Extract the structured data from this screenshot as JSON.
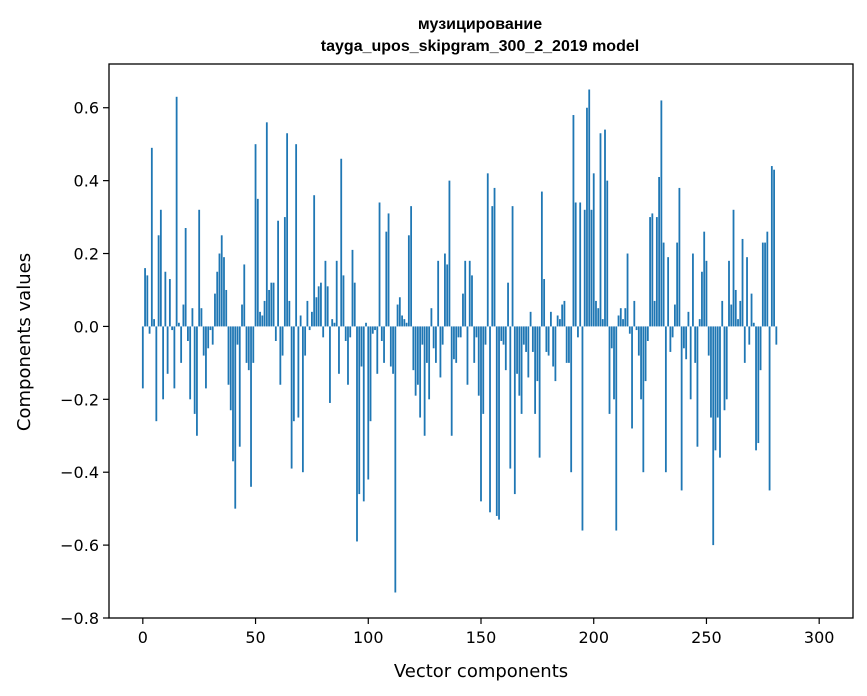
{
  "chart_data": {
    "type": "bar",
    "title": "музицирование",
    "subtitle": "tayga_upos_skipgram_300_2_2019 model",
    "xlabel": "Vector components",
    "ylabel": "Components values",
    "xlim": [
      -15,
      315
    ],
    "ylim": [
      -0.8,
      0.72
    ],
    "xticks": [
      0,
      50,
      100,
      150,
      200,
      250,
      300
    ],
    "yticks": [
      -0.8,
      -0.6,
      -0.4,
      -0.2,
      0.0,
      0.2,
      0.4,
      0.6
    ],
    "ytick_labels": [
      "−0.8",
      "−0.6",
      "−0.4",
      "−0.2",
      "0.0",
      "0.2",
      "0.4",
      "0.6"
    ],
    "xtick_labels": [
      "0",
      "50",
      "100",
      "150",
      "200",
      "250",
      "300"
    ],
    "bar_color": "#1f77b4",
    "values": [
      -0.17,
      0.16,
      0.14,
      -0.02,
      0.49,
      0.02,
      -0.26,
      0.25,
      0.32,
      -0.2,
      0.15,
      -0.13,
      0.13,
      -0.01,
      -0.17,
      0.63,
      0.01,
      -0.1,
      0.06,
      0.27,
      -0.04,
      -0.2,
      0.05,
      -0.24,
      -0.3,
      0.32,
      0.05,
      -0.08,
      -0.17,
      -0.06,
      -0.01,
      -0.05,
      0.09,
      0.15,
      0.2,
      0.25,
      0.19,
      0.1,
      -0.16,
      -0.23,
      -0.37,
      -0.5,
      -0.05,
      -0.33,
      0.06,
      0.17,
      -0.1,
      -0.12,
      -0.44,
      -0.1,
      0.5,
      0.35,
      0.04,
      0.03,
      0.07,
      0.56,
      0.1,
      0.12,
      0.12,
      -0.04,
      0.29,
      -0.16,
      -0.08,
      0.3,
      0.53,
      0.07,
      -0.39,
      -0.26,
      0.5,
      -0.25,
      0.03,
      -0.4,
      -0.08,
      0.07,
      -0.01,
      0.04,
      0.36,
      0.08,
      0.11,
      0.12,
      -0.03,
      0.18,
      0.11,
      -0.21,
      0.02,
      0.01,
      0.18,
      -0.13,
      0.46,
      0.14,
      -0.04,
      -0.16,
      -0.03,
      0.21,
      0.12,
      -0.59,
      -0.46,
      -0.11,
      -0.48,
      0.01,
      -0.42,
      -0.26,
      -0.02,
      -0.01,
      -0.13,
      0.34,
      -0.04,
      -0.1,
      0.26,
      0.31,
      -0.11,
      -0.13,
      -0.73,
      0.06,
      0.08,
      0.03,
      0.02,
      0.01,
      0.25,
      0.33,
      -0.12,
      -0.19,
      -0.16,
      -0.25,
      -0.05,
      -0.3,
      -0.1,
      -0.2,
      0.05,
      -0.06,
      -0.1,
      0.18,
      -0.14,
      -0.05,
      0.2,
      0.17,
      0.4,
      -0.3,
      -0.09,
      -0.1,
      -0.03,
      -0.03,
      0.09,
      0.18,
      -0.16,
      0.18,
      0.14,
      -0.1,
      -0.03,
      -0.19,
      -0.48,
      -0.24,
      -0.05,
      0.42,
      -0.51,
      0.33,
      0.38,
      -0.52,
      -0.53,
      -0.04,
      -0.05,
      -0.12,
      0.12,
      -0.39,
      0.33,
      -0.46,
      -0.13,
      -0.19,
      -0.24,
      -0.05,
      -0.07,
      -0.14,
      0.04,
      -0.07,
      -0.24,
      -0.15,
      -0.36,
      0.37,
      0.13,
      -0.07,
      -0.08,
      0.04,
      -0.11,
      -0.15,
      0.03,
      0.02,
      0.06,
      0.07,
      -0.1,
      -0.1,
      -0.4,
      0.58,
      0.34,
      -0.03,
      0.34,
      -0.56,
      0.32,
      0.6,
      0.65,
      0.32,
      0.42,
      0.07,
      0.05,
      0.53,
      0.02,
      0.54,
      0.4,
      -0.24,
      -0.06,
      -0.2,
      -0.56,
      0.03,
      0.05,
      0.02,
      0.05,
      0.2,
      -0.02,
      -0.28,
      0.07,
      -0.01,
      -0.08,
      -0.2,
      -0.4,
      -0.15,
      -0.04,
      0.3,
      0.31,
      0.07,
      0.3,
      0.41,
      0.62,
      0.23,
      -0.4,
      0.19,
      -0.07,
      -0.03,
      0.06,
      0.23,
      0.38,
      -0.45,
      -0.06,
      -0.09,
      0.04,
      -0.2,
      0.2,
      -0.1,
      -0.33,
      0.02,
      0.15,
      0.26,
      0.18,
      -0.08,
      -0.25,
      -0.6,
      -0.34,
      -0.25,
      -0.36,
      0.07,
      -0.23,
      -0.2,
      0.18,
      0.06,
      0.32,
      0.1,
      0.02,
      0.07,
      0.24,
      -0.1,
      0.19,
      -0.05,
      0.09,
      0.01,
      -0.34,
      -0.32,
      -0.12,
      0.23,
      0.23,
      0.26,
      -0.45,
      0.44,
      0.43,
      -0.05
    ]
  }
}
